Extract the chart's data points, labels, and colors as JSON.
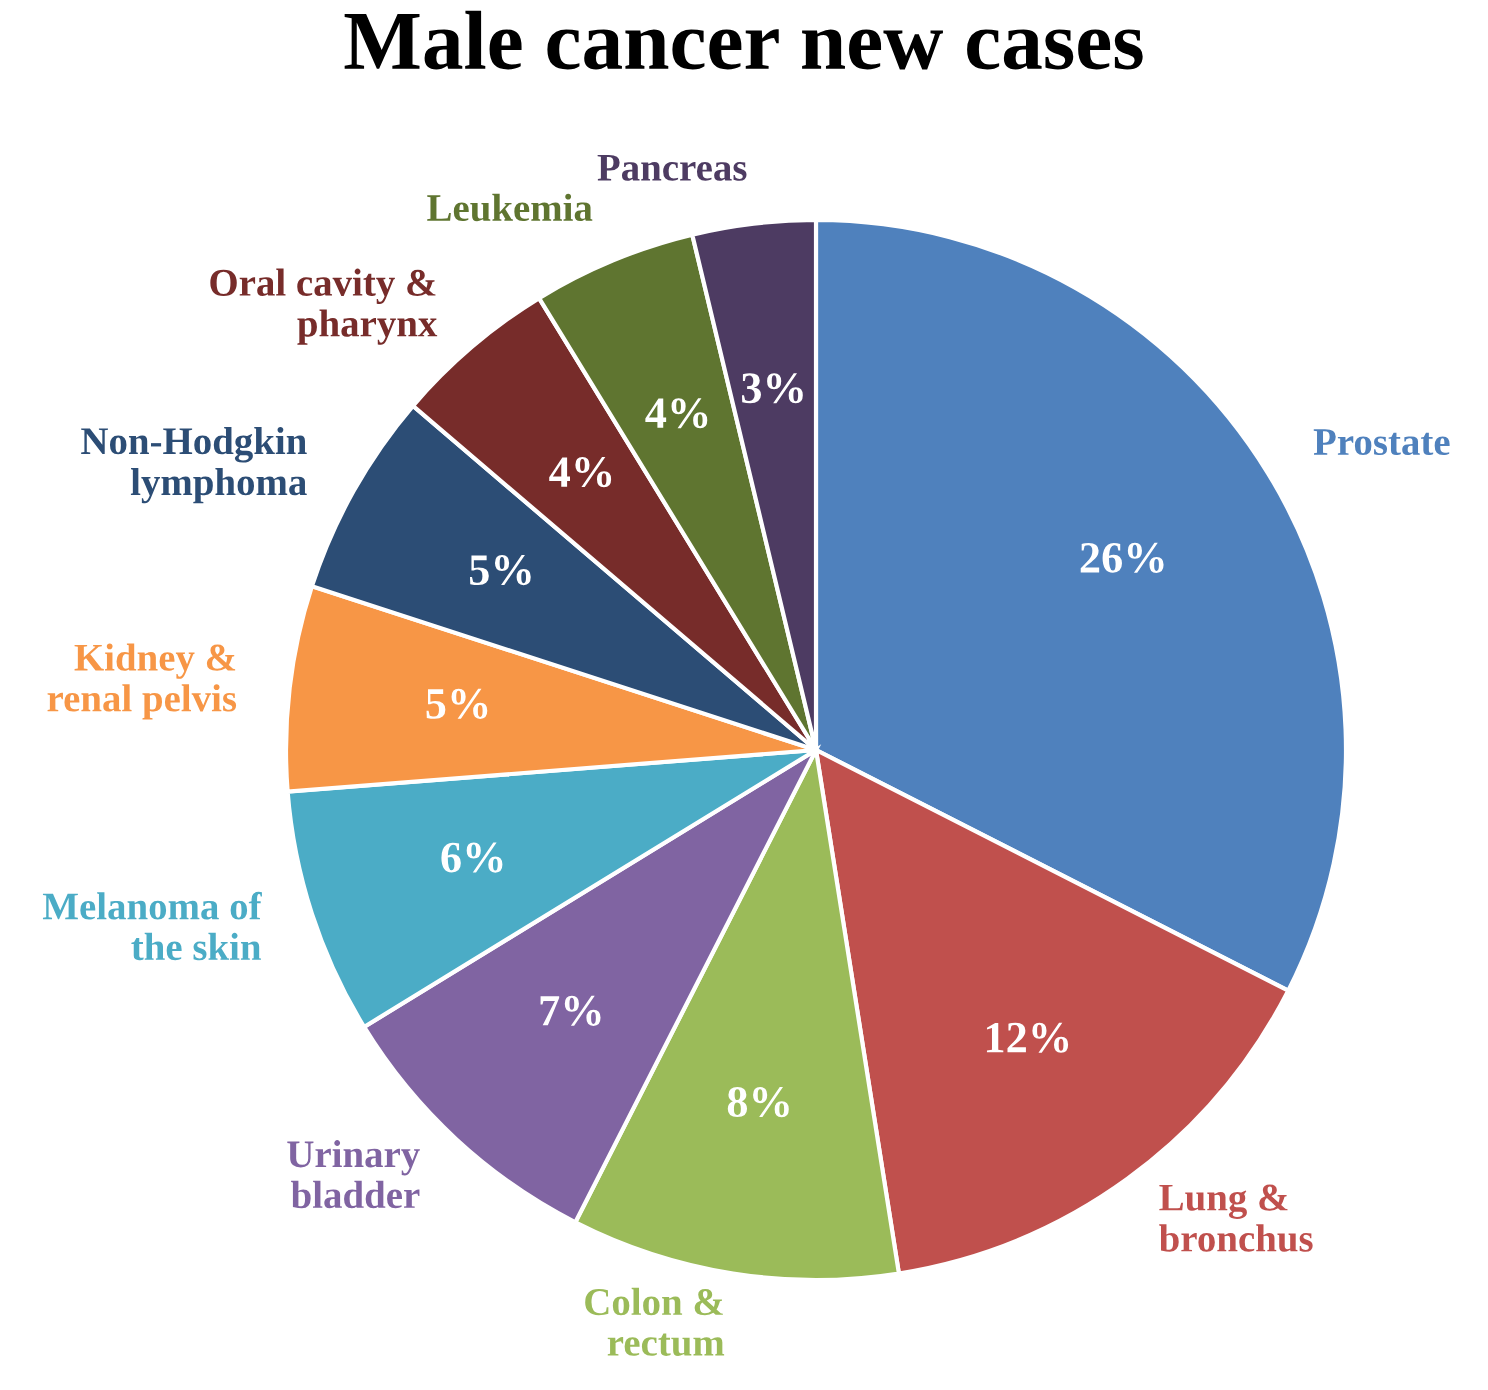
{
  "chart_data": {
    "type": "pie",
    "title": "Male cancer new cases",
    "categories": [
      "Prostate",
      "Lung &\nbronchus",
      "Colon &\nrectum",
      "Urinary\nbladder",
      "Melanoma of\nthe skin",
      "Kidney &\nrenal pelvis",
      "Non-Hodgkin\nlymphoma",
      "Oral cavity &\npharynx",
      "Leukemia",
      "Pancreas"
    ],
    "values": [
      26,
      12,
      8,
      7,
      6,
      5,
      5,
      4,
      4,
      3
    ],
    "value_labels": [
      "26%",
      "12%",
      "8%",
      "7%",
      "6%",
      "5%",
      "5%",
      "4%",
      "4%",
      "3%"
    ],
    "colors": [
      "#4f81bd",
      "#c0504d",
      "#9bbb59",
      "#8064a2",
      "#4bacc6",
      "#f79646",
      "#2c4d75",
      "#772c2a",
      "#5f7530",
      "#4d3b62"
    ]
  }
}
